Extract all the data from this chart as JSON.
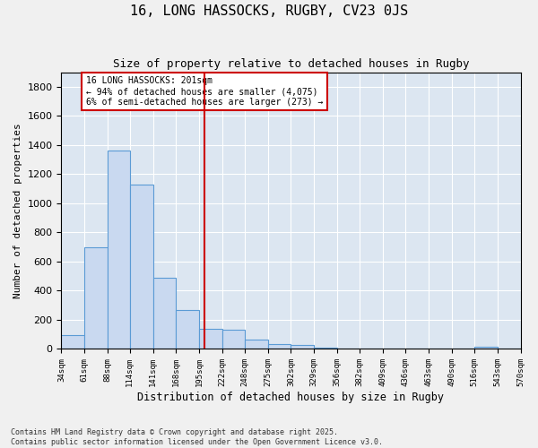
{
  "title": "16, LONG HASSOCKS, RUGBY, CV23 0JS",
  "subtitle": "Size of property relative to detached houses in Rugby",
  "xlabel": "Distribution of detached houses by size in Rugby",
  "ylabel": "Number of detached properties",
  "bar_color": "#c9d9f0",
  "bar_edge_color": "#5b9bd5",
  "background_color": "#dce6f1",
  "grid_color": "#ffffff",
  "vline_x": 201,
  "vline_color": "#cc0000",
  "annotation_text": "16 LONG HASSOCKS: 201sqm\n← 94% of detached houses are smaller (4,075)\n6% of semi-detached houses are larger (273) →",
  "annotation_box_color": "#cc0000",
  "footer_line1": "Contains HM Land Registry data © Crown copyright and database right 2025.",
  "footer_line2": "Contains public sector information licensed under the Open Government Licence v3.0.",
  "bins": [
    34,
    61,
    88,
    114,
    141,
    168,
    195,
    222,
    248,
    275,
    302,
    329,
    356,
    382,
    409,
    436,
    463,
    490,
    516,
    543,
    570
  ],
  "bin_labels": [
    "34sqm",
    "61sqm",
    "88sqm",
    "114sqm",
    "141sqm",
    "168sqm",
    "195sqm",
    "222sqm",
    "248sqm",
    "275sqm",
    "302sqm",
    "329sqm",
    "356sqm",
    "382sqm",
    "409sqm",
    "436sqm",
    "463sqm",
    "490sqm",
    "516sqm",
    "543sqm",
    "570sqm"
  ],
  "bar_heights": [
    95,
    700,
    1360,
    1130,
    490,
    270,
    140,
    135,
    65,
    35,
    30,
    10,
    5,
    2,
    1,
    5,
    0,
    0,
    15,
    0
  ],
  "ylim": [
    0,
    1900
  ],
  "yticks": [
    0,
    200,
    400,
    600,
    800,
    1000,
    1200,
    1400,
    1600,
    1800
  ]
}
